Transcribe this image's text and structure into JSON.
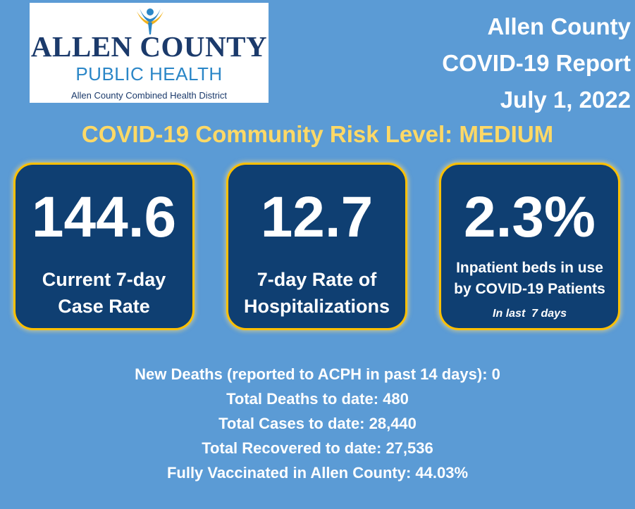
{
  "logo": {
    "main": "ALLEN COUNTY",
    "sub": "PUBLIC HEALTH",
    "tagline": "Allen County Combined Health District",
    "figure_icon": "person-arms-raised-icon"
  },
  "report": {
    "county": "Allen County",
    "title": "COVID-19 Report",
    "date": "July 1, 2022"
  },
  "risk_level": "COVID-19 Community Risk Level: MEDIUM",
  "cards": [
    {
      "value": "144.6",
      "label_line1": "Current 7-day",
      "label_line2": "Case Rate"
    },
    {
      "value": "12.7",
      "label_line1": "7-day Rate of",
      "label_line2": "Hospitalizations"
    },
    {
      "value": "2.3%",
      "label_line1": "Inpatient beds in use",
      "label_line2": "by COVID-19 Patients",
      "note": "In last  7 days"
    }
  ],
  "facts": [
    "New Deaths (reported to ACPH in past 14 days): 0",
    "Total Deaths to date: 480",
    "Total Cases to date: 28,440",
    "Total Recovered to date: 27,536",
    "Fully Vaccinated in Allen County: 44.03%"
  ],
  "colors": {
    "background": "#5b9bd5",
    "card": "#0f3f72",
    "card_border": "#ffc000",
    "risk_text": "#ffd966",
    "logo_navy": "#1b3a6b",
    "logo_blue": "#2a86c7"
  }
}
